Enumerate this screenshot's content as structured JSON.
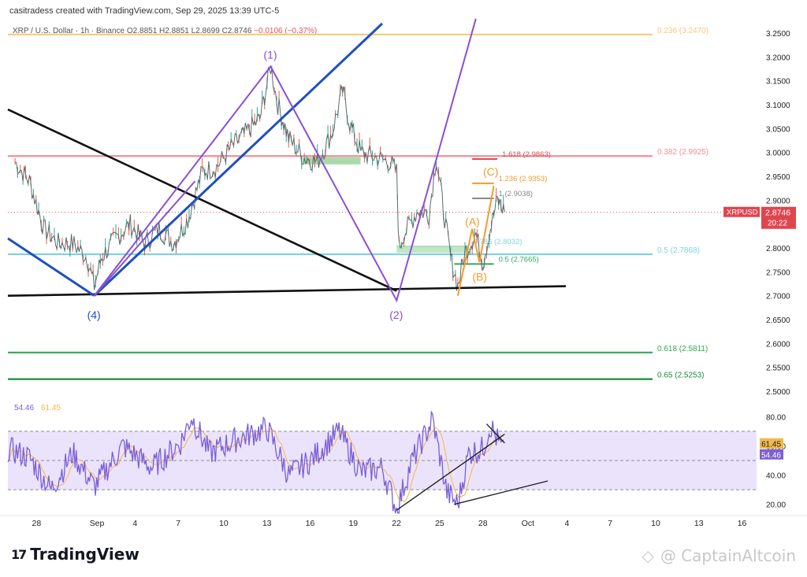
{
  "header": {
    "attribution": "casitradess created with TradingView.com, Sep 29, 2025 13:39 UTC-5"
  },
  "legend": {
    "symbol": "XRP / U.S. Dollar · 1h · Binance",
    "open": "O2.8851",
    "high": "H2.8851",
    "low": "L2.8699",
    "close": "C2.8746",
    "change": "−0.0106 (−0.37%)"
  },
  "footer": {
    "logo": "TradingView",
    "watermark": "@ CaptainAltcoin"
  },
  "colors": {
    "fib_orange": "#f5c97e",
    "fib_red": "#f08f97",
    "fib_cyan": "#7fd3e0",
    "fib_green": "#33a853",
    "blue_line": "#1f4fc4",
    "purple": "#8a4fd6",
    "black": "#111111",
    "orange": "#f39a2b",
    "rsi": "#7b5fd6",
    "rsi_ma": "#f2b84b",
    "rsi_band": "#ebe3fb",
    "price_tag": "#e0454e"
  },
  "chart_data": {
    "type": "line",
    "title": "XRP / U.S. Dollar · 1h · Binance",
    "price_axis": {
      "range": [
        2.47,
        3.27
      ],
      "ticks": [
        "3.2500",
        "3.2000",
        "3.1500",
        "3.1000",
        "3.0500",
        "3.0000",
        "2.9500",
        "2.9000",
        "2.8500",
        "2.8000",
        "2.7500",
        "2.7000",
        "2.6500",
        "2.6000",
        "2.5500",
        "2.5000"
      ]
    },
    "time_axis": {
      "labels": [
        "28",
        "Sep",
        "4",
        "7",
        "10",
        "13",
        "16",
        "19",
        "22",
        "25",
        "28",
        "Oct",
        "4",
        "7",
        "10",
        "13",
        "16"
      ]
    },
    "current_price": {
      "label": "XRPUSD",
      "value": "2.8746",
      "countdown": "20:22"
    },
    "price_series_anchor_points": [
      {
        "date": "2025-08-26 12:00",
        "close": 2.98
      },
      {
        "date": "2025-08-27 12:00",
        "close": 2.94
      },
      {
        "date": "2025-08-28 12:00",
        "close": 2.84
      },
      {
        "date": "2025-08-29 12:00",
        "close": 2.81
      },
      {
        "date": "2025-08-30 12:00",
        "close": 2.81
      },
      {
        "date": "2025-08-31 12:00",
        "close": 2.78
      },
      {
        "date": "2025-09-01 00:00",
        "close": 2.72
      },
      {
        "date": "2025-09-01 12:00",
        "close": 2.78
      },
      {
        "date": "2025-09-02 12:00",
        "close": 2.82
      },
      {
        "date": "2025-09-03 12:00",
        "close": 2.85
      },
      {
        "date": "2025-09-04 12:00",
        "close": 2.81
      },
      {
        "date": "2025-09-05 12:00",
        "close": 2.84
      },
      {
        "date": "2025-09-06 12:00",
        "close": 2.81
      },
      {
        "date": "2025-09-07 12:00",
        "close": 2.86
      },
      {
        "date": "2025-09-08 12:00",
        "close": 2.96
      },
      {
        "date": "2025-09-09 12:00",
        "close": 2.97
      },
      {
        "date": "2025-09-10 12:00",
        "close": 3.01
      },
      {
        "date": "2025-09-11 12:00",
        "close": 3.04
      },
      {
        "date": "2025-09-12 12:00",
        "close": 3.07
      },
      {
        "date": "2025-09-13 06:00",
        "close": 3.18
      },
      {
        "date": "2025-09-13 18:00",
        "close": 3.1
      },
      {
        "date": "2025-09-14 12:00",
        "close": 3.03
      },
      {
        "date": "2025-09-15 12:00",
        "close": 2.99
      },
      {
        "date": "2025-09-16 12:00",
        "close": 2.98
      },
      {
        "date": "2025-09-17 12:00",
        "close": 3.04
      },
      {
        "date": "2025-09-18 06:00",
        "close": 3.13
      },
      {
        "date": "2025-09-18 18:00",
        "close": 3.06
      },
      {
        "date": "2025-09-19 12:00",
        "close": 3.0
      },
      {
        "date": "2025-09-20 12:00",
        "close": 2.99
      },
      {
        "date": "2025-09-21 12:00",
        "close": 2.98
      },
      {
        "date": "2025-09-22 00:00",
        "close": 2.96
      },
      {
        "date": "2025-09-22 04:00",
        "close": 2.8
      },
      {
        "date": "2025-09-22 12:00",
        "close": 2.83
      },
      {
        "date": "2025-09-23 12:00",
        "close": 2.88
      },
      {
        "date": "2025-09-24 06:00",
        "close": 2.87
      },
      {
        "date": "2025-09-24 18:00",
        "close": 2.99
      },
      {
        "date": "2025-09-25 06:00",
        "close": 2.88
      },
      {
        "date": "2025-09-25 18:00",
        "close": 2.78
      },
      {
        "date": "2025-09-26 06:00",
        "close": 2.72
      },
      {
        "date": "2025-09-26 18:00",
        "close": 2.79
      },
      {
        "date": "2025-09-27 12:00",
        "close": 2.83
      },
      {
        "date": "2025-09-28 00:00",
        "close": 2.77
      },
      {
        "date": "2025-09-28 12:00",
        "close": 2.84
      },
      {
        "date": "2025-09-29 00:00",
        "close": 2.9
      },
      {
        "date": "2025-09-29 12:00",
        "close": 2.875
      }
    ],
    "fib_levels": [
      {
        "label": "0.236 (3.2470)",
        "value": 3.247,
        "color": "#f5c97e",
        "start": "2025-08-26"
      },
      {
        "label": "0.382 (2.9925)",
        "value": 2.9925,
        "color": "#f08f97",
        "start": "2025-08-26"
      },
      {
        "label": "0.5 (2.7868)",
        "value": 2.7868,
        "color": "#7fd3e0",
        "start": "2025-08-26"
      },
      {
        "label": "0.618 (2.5811)",
        "value": 2.5811,
        "color": "#33a853",
        "start": "2025-08-26"
      },
      {
        "label": "0.65 (2.5253)",
        "value": 2.5253,
        "color": "#1e8a3a",
        "start": "2025-08-26"
      }
    ],
    "short_levels": [
      {
        "label": "1.618 (2.9863)",
        "value": 2.9863,
        "color": "#e0454e",
        "from": "2025-09-27 06:00",
        "to": "2025-09-29 00:00"
      },
      {
        "label": "1.236 (2.9353)",
        "value": 2.9353,
        "color": "#f39a2b",
        "from": "2025-09-27 06:00",
        "to": "2025-09-28 18:00"
      },
      {
        "label": "1 (2.9038)",
        "value": 2.9038,
        "color": "#888888",
        "from": "2025-09-27 06:00",
        "to": "2025-09-28 18:00"
      },
      {
        "label": "0.786 (2.8032)",
        "value": 2.8032,
        "color": "#7fd3e0",
        "from": "2025-09-22 00:00",
        "to": "2025-09-27 00:00"
      },
      {
        "label": "0.5 (2.7665)",
        "value": 2.7665,
        "color": "#33a853",
        "from": "2025-09-26 00:00",
        "to": "2025-09-28 18:00"
      }
    ],
    "zones": [
      {
        "from": "2025-09-15 12:00",
        "to": "2025-09-19 12:00",
        "low": 2.975,
        "high": 2.99,
        "color": "#9bd49b"
      },
      {
        "from": "2025-09-22 00:00",
        "to": "2025-09-27 00:00",
        "low": 2.79,
        "high": 2.805,
        "color": "#b8e0b8"
      }
    ],
    "trendlines": [
      {
        "color": "#111111",
        "points": [
          [
            "2025-08-26 00:00",
            3.09
          ],
          [
            "2025-09-22 00:00",
            2.71
          ]
        ]
      },
      {
        "color": "#111111",
        "points": [
          [
            "2025-08-26 00:00",
            2.7
          ],
          [
            "2025-10-03 18:00",
            2.72
          ]
        ]
      },
      {
        "color": "#1f4fc4",
        "points": [
          [
            "2025-08-26 00:00",
            2.82
          ],
          [
            "2025-09-01 00:00",
            2.7
          ]
        ]
      },
      {
        "color": "#1f4fc4",
        "points": [
          [
            "2025-09-01 00:00",
            2.7
          ],
          [
            "2025-09-21 00:00",
            3.27
          ]
        ]
      }
    ],
    "waves": [
      {
        "color": "#8a4fd6",
        "points": [
          [
            "2025-09-01 00:00",
            2.7
          ],
          [
            "2025-09-13 06:00",
            3.18
          ],
          [
            "2025-09-22 00:00",
            2.69
          ],
          [
            "2025-09-27 12:00",
            3.28
          ]
        ]
      },
      {
        "color": "#8a4fd6",
        "points": [
          [
            "2025-09-01 00:00",
            2.7
          ],
          [
            "2025-09-08 00:00",
            2.94
          ]
        ]
      },
      {
        "color": "#f39a2b",
        "points": [
          [
            "2025-09-26 06:00",
            2.7
          ],
          [
            "2025-09-27 06:00",
            2.84
          ],
          [
            "2025-09-27 18:00",
            2.77
          ],
          [
            "2025-09-28 18:00",
            2.93
          ]
        ]
      }
    ],
    "wave_labels": [
      {
        "text": "(1)",
        "date": "2025-09-13 06:00",
        "price": 3.205,
        "color": "#8a4fd6"
      },
      {
        "text": "(2)",
        "date": "2025-09-22 00:00",
        "price": 2.66,
        "color": "#8a4fd6"
      },
      {
        "text": "(4)",
        "date": "2025-09-01 00:00",
        "price": 2.66,
        "color": "#1f4fc4"
      },
      {
        "text": "(A)",
        "date": "2025-09-27 06:00",
        "price": 2.855,
        "color": "#f39a2b"
      },
      {
        "text": "(B)",
        "date": "2025-09-27 18:00",
        "price": 2.74,
        "color": "#f39a2b"
      },
      {
        "text": "(C)",
        "date": "2025-09-28 12:00",
        "price": 2.96,
        "color": "#f39a2b"
      }
    ],
    "rsi": {
      "values_label": "54.46",
      "ma_label": "61.45",
      "range": [
        10,
        90
      ],
      "band": [
        30,
        70
      ],
      "ticks": [
        "80.00",
        "60.00",
        "40.00",
        "20.00"
      ],
      "current_rsi": "54.46",
      "current_ma": "61.45",
      "anchor_points": [
        {
          "date": "2025-08-26 00:00",
          "rsi": 58
        },
        {
          "date": "2025-08-27 12:00",
          "rsi": 52
        },
        {
          "date": "2025-08-29 00:00",
          "rsi": 30
        },
        {
          "date": "2025-08-30 12:00",
          "rsi": 55
        },
        {
          "date": "2025-09-01 00:00",
          "rsi": 32
        },
        {
          "date": "2025-09-03 00:00",
          "rsi": 60
        },
        {
          "date": "2025-09-05 00:00",
          "rsi": 45
        },
        {
          "date": "2025-09-07 00:00",
          "rsi": 62
        },
        {
          "date": "2025-09-07 18:00",
          "rsi": 80
        },
        {
          "date": "2025-09-09 00:00",
          "rsi": 55
        },
        {
          "date": "2025-09-11 00:00",
          "rsi": 65
        },
        {
          "date": "2025-09-13 00:00",
          "rsi": 72
        },
        {
          "date": "2025-09-14 12:00",
          "rsi": 40
        },
        {
          "date": "2025-09-16 00:00",
          "rsi": 50
        },
        {
          "date": "2025-09-18 00:00",
          "rsi": 70
        },
        {
          "date": "2025-09-19 12:00",
          "rsi": 42
        },
        {
          "date": "2025-09-21 00:00",
          "rsi": 45
        },
        {
          "date": "2025-09-22 00:00",
          "rsi": 16
        },
        {
          "date": "2025-09-23 00:00",
          "rsi": 48
        },
        {
          "date": "2025-09-24 12:00",
          "rsi": 78
        },
        {
          "date": "2025-09-25 12:00",
          "rsi": 28
        },
        {
          "date": "2025-09-26 06:00",
          "rsi": 20
        },
        {
          "date": "2025-09-27 00:00",
          "rsi": 55
        },
        {
          "date": "2025-09-28 00:00",
          "rsi": 58
        },
        {
          "date": "2025-09-28 12:00",
          "rsi": 74
        },
        {
          "date": "2025-09-29 12:00",
          "rsi": 54
        }
      ],
      "trendlines": [
        {
          "points": [
            [
              "2025-09-22 00:00",
              16
            ],
            [
              "2025-09-29 12:00",
              68
            ]
          ]
        },
        {
          "points": [
            [
              "2025-09-26 00:00",
              20
            ],
            [
              "2025-10-02 12:00",
              36
            ]
          ]
        },
        {
          "points": [
            [
              "2025-09-28 06:00",
              75
            ],
            [
              "2025-09-29 12:00",
              62
            ]
          ]
        }
      ]
    }
  }
}
